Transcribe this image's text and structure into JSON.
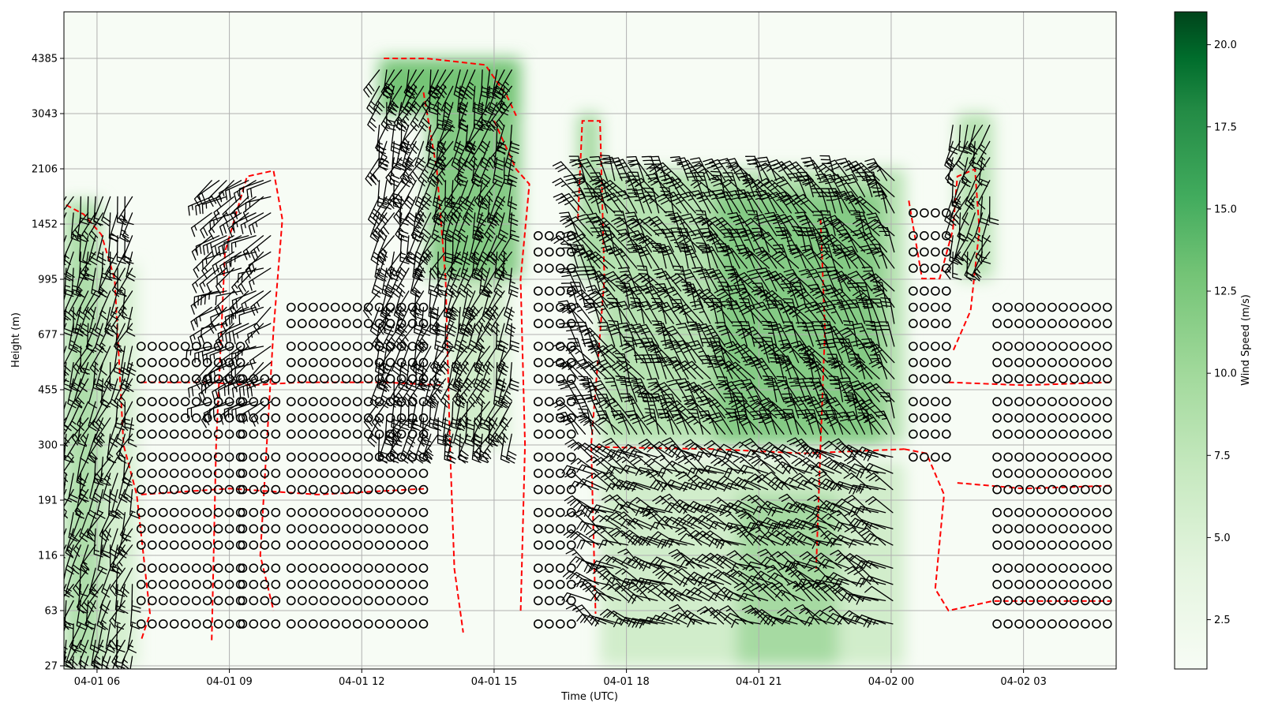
{
  "chart_data": {
    "type": "heatmap",
    "overlay": "wind barbs with calm-wind circles and dashed red contours",
    "xlabel": "Time (UTC)",
    "ylabel": "Height (m)",
    "colorbar_label": "Wind Speed (m/s)",
    "colormap": "Greens",
    "colorbar_range": [
      1.0,
      21.0
    ],
    "colorbar_ticks": [
      "2.5",
      "5.0",
      "7.5",
      "10.0",
      "12.5",
      "15.0",
      "17.5",
      "20.0"
    ],
    "x_ticks": [
      "04-01 06",
      "04-01 09",
      "04-01 12",
      "04-01 15",
      "04-01 18",
      "04-01 21",
      "04-02 00",
      "04-02 03"
    ],
    "x_tick_hours": [
      6,
      9,
      12,
      15,
      18,
      21,
      24,
      27
    ],
    "xlim_hours": [
      5.25,
      29.1
    ],
    "y_ticks": [
      "27",
      "63",
      "116",
      "191",
      "300",
      "455",
      "677",
      "995",
      "1452",
      "2106",
      "3043",
      "4385"
    ],
    "grid": true,
    "contour_color": "#ff0000",
    "speed_regions": [
      {
        "t0": 5.25,
        "t1": 6.1,
        "h0": 27,
        "h1": 1700,
        "speed": 7.5
      },
      {
        "t0": 6.1,
        "t1": 6.9,
        "h0": 27,
        "h1": 1100,
        "speed": 4.5
      },
      {
        "t0": 12.4,
        "t1": 15.6,
        "h0": 3043,
        "h1": 4385,
        "speed": 11
      },
      {
        "t0": 13.5,
        "t1": 15.6,
        "h0": 995,
        "h1": 3043,
        "speed": 10
      },
      {
        "t0": 14.0,
        "t1": 15.3,
        "h0": 300,
        "h1": 995,
        "speed": 5
      },
      {
        "t0": 16.9,
        "t1": 17.4,
        "h0": 995,
        "h1": 3043,
        "speed": 8
      },
      {
        "t0": 17.4,
        "t1": 24.3,
        "h0": 300,
        "h1": 2106,
        "speed": 7
      },
      {
        "t0": 20.0,
        "t1": 23.8,
        "h0": 300,
        "h1": 1800,
        "speed": 10
      },
      {
        "t0": 17.4,
        "t1": 24.3,
        "h0": 27,
        "h1": 260,
        "speed": 5
      },
      {
        "t0": 20.5,
        "t1": 22.8,
        "h0": 27,
        "h1": 200,
        "speed": 8
      },
      {
        "t0": 25.5,
        "t1": 26.3,
        "h0": 1000,
        "h1": 3043,
        "speed": 7
      }
    ],
    "calm_columns": [
      {
        "t0": 7.0,
        "t1": 9.3,
        "h0": 50,
        "h1": 700
      },
      {
        "t0": 9.3,
        "t1": 10.2,
        "h0": 50,
        "h1": 500
      },
      {
        "t0": 10.4,
        "t1": 13.6,
        "h0": 50,
        "h1": 900
      },
      {
        "t0": 16.0,
        "t1": 16.9,
        "h0": 50,
        "h1": 1500
      },
      {
        "t0": 24.5,
        "t1": 25.4,
        "h0": 250,
        "h1": 1700
      },
      {
        "t0": 26.4,
        "t1": 29.0,
        "h0": 50,
        "h1": 900
      }
    ],
    "barb_columns": [
      {
        "t0": 5.3,
        "t1": 6.9,
        "h0": 30,
        "h1": 1900,
        "dir": 200,
        "speed": 10
      },
      {
        "t0": 8.6,
        "t1": 10.1,
        "h0": 400,
        "h1": 2000,
        "dir": 240,
        "speed": 10
      },
      {
        "t0": 12.4,
        "t1": 15.5,
        "h0": 300,
        "h1": 4385,
        "dir": 200,
        "speed": 15
      },
      {
        "t0": 16.9,
        "t1": 24.2,
        "h0": 320,
        "h1": 2106,
        "dir": 330,
        "speed": 15
      },
      {
        "t0": 17.2,
        "t1": 24.2,
        "h0": 45,
        "h1": 280,
        "dir": 300,
        "speed": 10
      },
      {
        "t0": 25.4,
        "t1": 26.3,
        "h0": 1100,
        "h1": 3043,
        "dir": 200,
        "speed": 10
      }
    ],
    "contours": [
      [
        [
          5.3,
          1650
        ],
        [
          5.7,
          1550
        ],
        [
          6.1,
          1350
        ],
        [
          6.4,
          995
        ],
        [
          6.6,
          300
        ],
        [
          6.9,
          200
        ],
        [
          7.2,
          60
        ],
        [
          7.0,
          40
        ]
      ],
      [
        [
          7.0,
          480
        ],
        [
          8.5,
          480
        ],
        [
          9.5,
          470
        ],
        [
          10.6,
          480
        ],
        [
          12.5,
          480
        ],
        [
          13.8,
          470
        ]
      ],
      [
        [
          7.0,
          200
        ],
        [
          9.0,
          210
        ],
        [
          11.0,
          200
        ],
        [
          13.5,
          210
        ]
      ],
      [
        [
          8.6,
          40
        ],
        [
          8.7,
          300
        ],
        [
          8.9,
          1200
        ],
        [
          9.4,
          2000
        ],
        [
          10.0,
          2080
        ],
        [
          10.2,
          1500
        ],
        [
          10.0,
          700
        ],
        [
          9.7,
          116
        ],
        [
          10.0,
          63
        ]
      ],
      [
        [
          12.5,
          4385
        ],
        [
          13.5,
          4380
        ],
        [
          14.8,
          4200
        ],
        [
          15.3,
          3400
        ],
        [
          15.5,
          3000
        ]
      ],
      [
        [
          13.4,
          3500
        ],
        [
          13.7,
          2100
        ],
        [
          13.9,
          1000
        ],
        [
          14.0,
          300
        ],
        [
          14.1,
          100
        ],
        [
          14.3,
          45
        ]
      ],
      [
        [
          15.0,
          2900
        ],
        [
          15.5,
          2100
        ],
        [
          15.8,
          1900
        ],
        [
          15.6,
          995
        ],
        [
          15.7,
          300
        ],
        [
          15.6,
          60
        ]
      ],
      [
        [
          16.9,
          1500
        ],
        [
          17.0,
          2900
        ],
        [
          17.4,
          2900
        ],
        [
          17.5,
          1000
        ],
        [
          17.2,
          300
        ],
        [
          17.3,
          60
        ]
      ],
      [
        [
          17.3,
          295
        ],
        [
          20.0,
          290
        ],
        [
          22.0,
          280
        ],
        [
          24.3,
          290
        ]
      ],
      [
        [
          22.4,
          1500
        ],
        [
          22.5,
          700
        ],
        [
          22.4,
          300
        ],
        [
          22.3,
          100
        ]
      ],
      [
        [
          24.3,
          290
        ],
        [
          24.8,
          280
        ],
        [
          25.2,
          200
        ],
        [
          25.0,
          80
        ],
        [
          25.3,
          63
        ],
        [
          26.3,
          70
        ],
        [
          27.5,
          70
        ],
        [
          29.0,
          70
        ]
      ],
      [
        [
          24.4,
          1700
        ],
        [
          24.7,
          1000
        ],
        [
          25.1,
          1000
        ],
        [
          25.4,
          1400
        ],
        [
          25.5,
          2000
        ],
        [
          25.9,
          2100
        ],
        [
          26.0,
          1400
        ],
        [
          25.8,
          800
        ],
        [
          25.4,
          600
        ]
      ],
      [
        [
          25.3,
          480
        ],
        [
          27.0,
          470
        ],
        [
          29.0,
          480
        ]
      ],
      [
        [
          25.5,
          220
        ],
        [
          27.0,
          210
        ],
        [
          29.0,
          215
        ]
      ]
    ]
  }
}
